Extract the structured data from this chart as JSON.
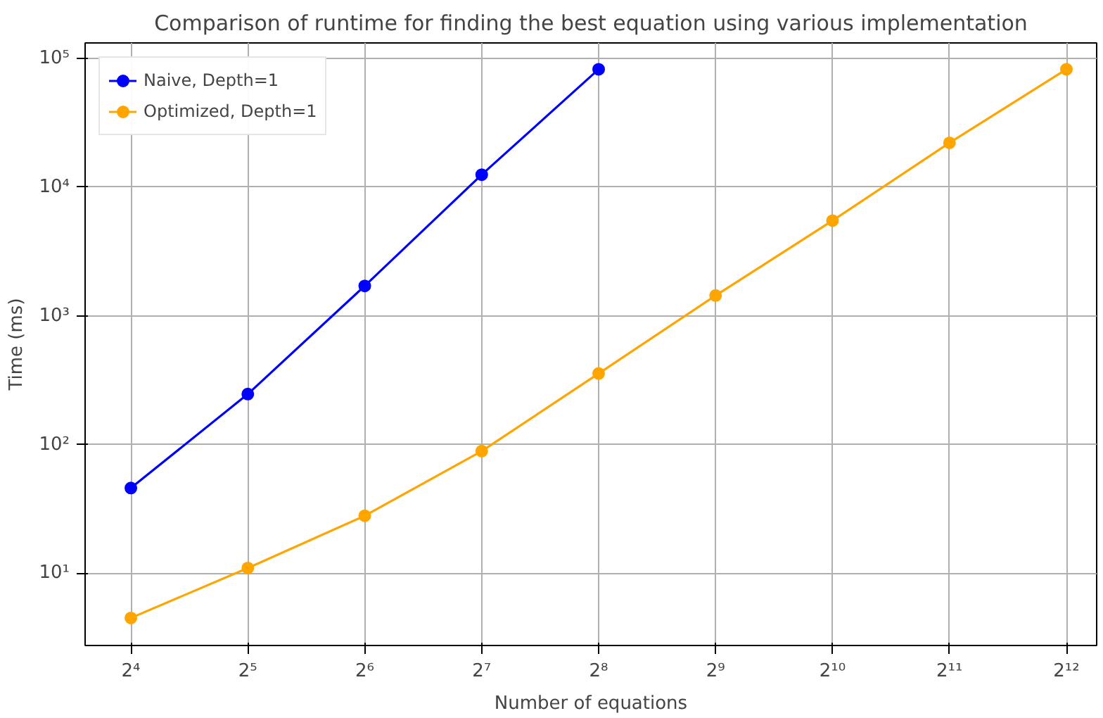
{
  "chart_data": {
    "type": "line",
    "title": "Comparison of runtime for finding the best equation using various implementation",
    "xlabel": "Number of equations",
    "ylabel": "Time (ms)",
    "log": "xy",
    "grid": true,
    "legend": "top left",
    "marker": "circle",
    "line_style": "solid",
    "xlim": [
      12.2,
      4900
    ],
    "ylim": [
      2.75,
      132000
    ],
    "xticks": [
      {
        "value": 16,
        "label": "2⁴"
      },
      {
        "value": 32,
        "label": "2⁵"
      },
      {
        "value": 64,
        "label": "2⁶"
      },
      {
        "value": 128,
        "label": "2⁷"
      },
      {
        "value": 256,
        "label": "2⁸"
      },
      {
        "value": 512,
        "label": "2⁹"
      },
      {
        "value": 1024,
        "label": "2¹⁰"
      },
      {
        "value": 2048,
        "label": "2¹¹"
      },
      {
        "value": 4096,
        "label": "2¹²"
      }
    ],
    "yticks": [
      {
        "value": 10,
        "label": "10¹"
      },
      {
        "value": 100,
        "label": "10²"
      },
      {
        "value": 1000,
        "label": "10³"
      },
      {
        "value": 10000,
        "label": "10⁴"
      },
      {
        "value": 100000,
        "label": "10⁵"
      }
    ],
    "series": [
      {
        "name": "Naive, Depth=1",
        "color": "#0000ff",
        "x": [
          16,
          32,
          64,
          128,
          256
        ],
        "values": [
          46,
          247,
          1710,
          12500,
          82400
        ]
      },
      {
        "name": "Optimized, Depth=1",
        "color": "#ffa500",
        "x": [
          16,
          32,
          64,
          128,
          256,
          512,
          1024,
          2048,
          4096
        ],
        "values": [
          4.5,
          11,
          28,
          89,
          357,
          1440,
          5500,
          22100,
          82400
        ]
      }
    ]
  }
}
